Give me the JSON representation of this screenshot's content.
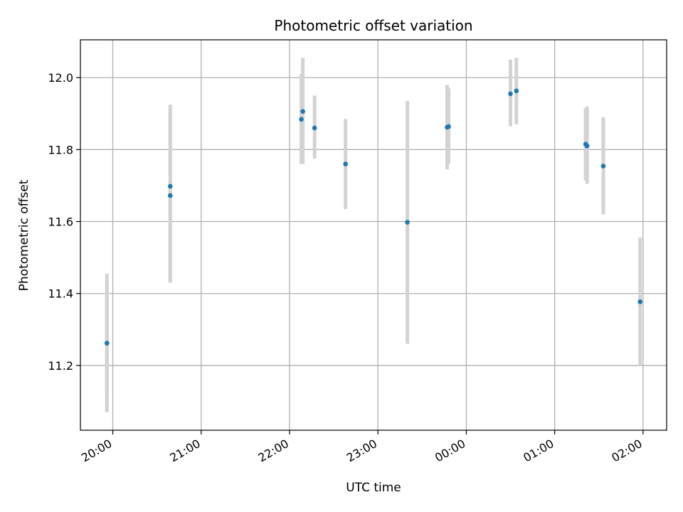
{
  "chart_data": {
    "type": "scatter",
    "title": "Photometric offset variation",
    "xlabel": "UTC time",
    "ylabel": "Photometric offset",
    "grid": true,
    "xlim": [
      "19:38",
      "02:16"
    ],
    "ylim": [
      11.02,
      12.105
    ],
    "x_ticks": [
      "20:00",
      "21:00",
      "22:00",
      "23:00",
      "00:00",
      "01:00",
      "02:00"
    ],
    "y_ticks": [
      11.2,
      11.4,
      11.6,
      11.8,
      12.0
    ],
    "y_tick_labels": [
      "11.2",
      "11.4",
      "11.6",
      "11.8",
      "12.0"
    ],
    "colors": {
      "marker": "#1f77b4",
      "errorbar": "#d3d3d3",
      "grid": "#b0b0b0"
    },
    "series": [
      {
        "points": [
          {
            "time": "19:56",
            "y": 11.262,
            "ylow": 11.07,
            "yhigh": 11.455
          },
          {
            "time": "19:56",
            "y": 11.262,
            "ylow": 11.115,
            "yhigh": 11.41
          },
          {
            "time": "20:39",
            "y": 11.698,
            "ylow": 11.43,
            "yhigh": 11.925
          },
          {
            "time": "20:39",
            "y": 11.672,
            "ylow": 11.43,
            "yhigh": 11.915
          },
          {
            "time": "22:08",
            "y": 11.884,
            "ylow": 11.76,
            "yhigh": 12.01
          },
          {
            "time": "22:09",
            "y": 11.906,
            "ylow": 11.76,
            "yhigh": 12.055
          },
          {
            "time": "22:17",
            "y": 11.86,
            "ylow": 11.775,
            "yhigh": 11.95
          },
          {
            "time": "22:38",
            "y": 11.76,
            "ylow": 11.635,
            "yhigh": 11.885
          },
          {
            "time": "23:20",
            "y": 11.598,
            "ylow": 11.26,
            "yhigh": 11.935
          },
          {
            "time": "23:47",
            "y": 11.862,
            "ylow": 11.745,
            "yhigh": 11.98
          },
          {
            "time": "23:48",
            "y": 11.864,
            "ylow": 11.76,
            "yhigh": 11.97
          },
          {
            "time": "00:30",
            "y": 11.955,
            "ylow": 11.865,
            "yhigh": 12.05
          },
          {
            "time": "00:34",
            "y": 11.963,
            "ylow": 11.87,
            "yhigh": 12.055
          },
          {
            "time": "01:21",
            "y": 11.815,
            "ylow": 11.715,
            "yhigh": 11.915
          },
          {
            "time": "01:22",
            "y": 11.81,
            "ylow": 11.705,
            "yhigh": 11.92
          },
          {
            "time": "01:33",
            "y": 11.754,
            "ylow": 11.62,
            "yhigh": 11.89
          },
          {
            "time": "01:58",
            "y": 11.377,
            "ylow": 11.2,
            "yhigh": 11.555
          }
        ]
      }
    ]
  }
}
